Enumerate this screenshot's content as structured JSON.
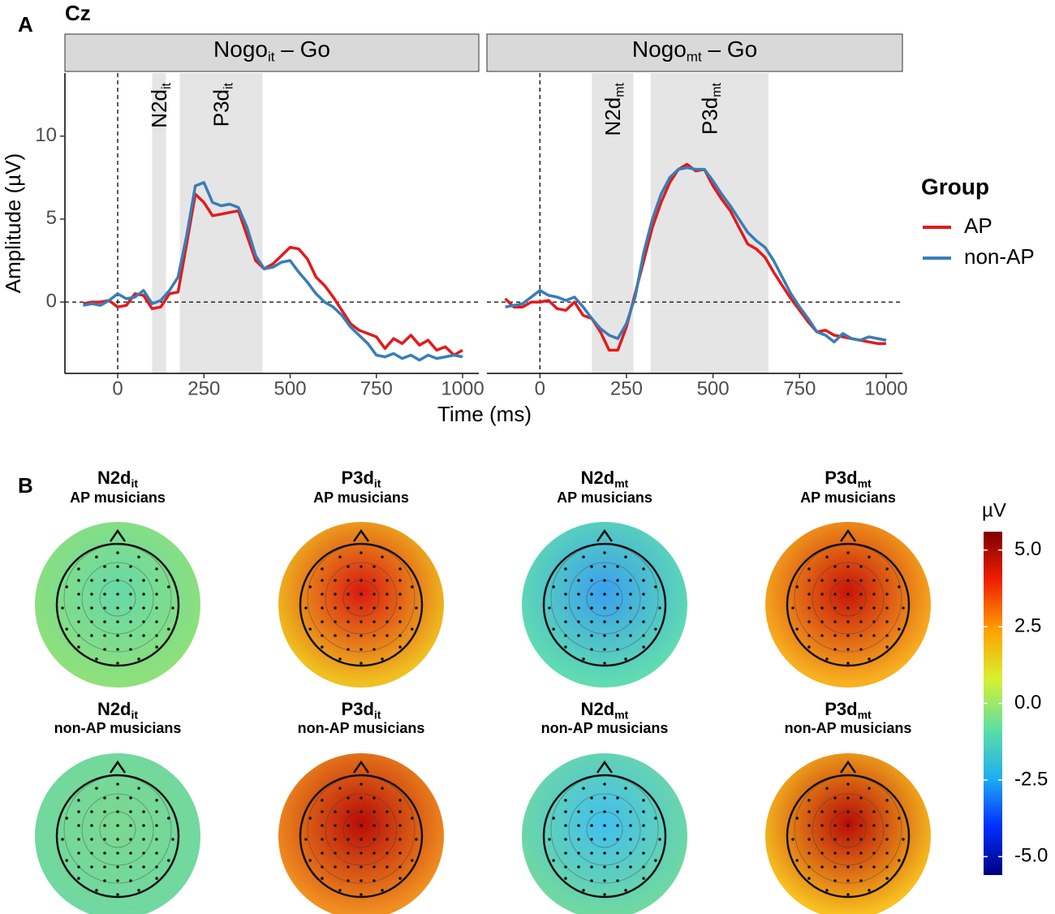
{
  "panel_labels": [
    "A",
    "B"
  ],
  "title": "Cz",
  "y_label": "Amplitude (µV)",
  "x_label": "Time (ms)",
  "legend": {
    "title": "Group"
  },
  "chart_data": [
    {
      "type": "line",
      "strip": [
        "Nogo",
        "it",
        " – Go"
      ],
      "x": [
        -100,
        -75,
        -50,
        -25,
        0,
        25,
        50,
        75,
        100,
        125,
        150,
        175,
        200,
        225,
        250,
        275,
        300,
        325,
        350,
        375,
        400,
        425,
        450,
        475,
        500,
        525,
        550,
        575,
        600,
        625,
        650,
        675,
        700,
        725,
        750,
        775,
        800,
        825,
        850,
        875,
        900,
        925,
        950,
        975,
        1000
      ],
      "series": [
        {
          "name": "AP",
          "color": "#e41a1c",
          "values": [
            -0.1,
            0,
            0,
            0.1,
            -0.3,
            -0.2,
            0.5,
            0.4,
            -0.4,
            -0.3,
            0.5,
            0.6,
            3.5,
            6.5,
            6.0,
            5.2,
            5.3,
            5.4,
            5.5,
            4.0,
            2.5,
            2.0,
            2.3,
            2.8,
            3.3,
            3.2,
            2.6,
            1.5,
            1.0,
            0.3,
            -0.5,
            -1.3,
            -1.7,
            -1.9,
            -2.1,
            -2.8,
            -2.2,
            -2.5,
            -2.0,
            -2.6,
            -2.3,
            -2.9,
            -2.7,
            -3.2,
            -2.9
          ]
        },
        {
          "name": "non-AP",
          "color": "#377eb8",
          "values": [
            -0.2,
            -0.1,
            -0.2,
            0.1,
            0.5,
            0.2,
            0.3,
            0.7,
            -0.1,
            0.1,
            0.7,
            1.5,
            4.0,
            7.0,
            7.2,
            6.0,
            5.8,
            5.9,
            5.7,
            4.5,
            2.8,
            2.0,
            2.1,
            2.4,
            2.5,
            1.8,
            1.2,
            0.5,
            0.0,
            -0.3,
            -0.8,
            -1.5,
            -2.0,
            -2.5,
            -3.2,
            -3.3,
            -3.1,
            -3.4,
            -3.2,
            -3.5,
            -3.2,
            -3.4,
            -3.3,
            -3.2,
            -3.3
          ]
        }
      ],
      "regions": [
        {
          "label": [
            "N2d",
            "it"
          ],
          "xlim": [
            100,
            140
          ]
        },
        {
          "label": [
            "P3d",
            "it"
          ],
          "xlim": [
            180,
            420
          ]
        }
      ],
      "ref_lines": {
        "x": 0,
        "y": 0
      },
      "xlim": [
        -153,
        1047
      ],
      "ylim": [
        -4.3,
        13.8
      ],
      "xticks": [
        0,
        250,
        500,
        750,
        1000
      ],
      "yticks": [
        0,
        5,
        10
      ]
    },
    {
      "type": "line",
      "strip": [
        "Nogo",
        "mt",
        " – Go"
      ],
      "x": [
        -100,
        -75,
        -50,
        -25,
        0,
        25,
        50,
        75,
        100,
        125,
        150,
        175,
        200,
        225,
        250,
        275,
        300,
        325,
        350,
        375,
        400,
        425,
        450,
        475,
        500,
        525,
        550,
        575,
        600,
        625,
        650,
        675,
        700,
        725,
        750,
        775,
        800,
        825,
        850,
        875,
        900,
        925,
        950,
        975,
        1000
      ],
      "series": [
        {
          "name": "AP",
          "color": "#e41a1c",
          "values": [
            0.2,
            -0.3,
            -0.3,
            0,
            0,
            0.1,
            -0.4,
            -0.5,
            0,
            -0.8,
            -1.0,
            -1.8,
            -2.9,
            -2.9,
            -1.5,
            0.5,
            2.5,
            4.5,
            6.0,
            7.2,
            8.0,
            8.3,
            7.9,
            8.0,
            7.0,
            6.2,
            5.5,
            4.5,
            3.5,
            3.2,
            2.7,
            1.8,
            1.0,
            0.2,
            -0.5,
            -1.2,
            -1.8,
            -1.7,
            -2.0,
            -2.1,
            -2.2,
            -2.3,
            -2.4,
            -2.5,
            -2.5
          ]
        },
        {
          "name": "non-AP",
          "color": "#377eb8",
          "values": [
            -0.3,
            -0.2,
            -0.1,
            0.3,
            0.7,
            0.4,
            0.3,
            0.1,
            0.3,
            -0.3,
            -1.0,
            -1.6,
            -2.0,
            -2.2,
            -1.3,
            0.3,
            3.0,
            5.0,
            6.5,
            7.5,
            8.0,
            8.1,
            8.0,
            8.0,
            7.3,
            6.5,
            5.8,
            5.0,
            4.2,
            3.7,
            3.3,
            2.5,
            1.5,
            0.5,
            -0.3,
            -1.0,
            -1.8,
            -2.0,
            -2.4,
            -1.9,
            -2.2,
            -2.3,
            -2.1,
            -2.2,
            -2.3
          ]
        }
      ],
      "regions": [
        {
          "label": [
            "N2d",
            "mt"
          ],
          "xlim": [
            150,
            270
          ]
        },
        {
          "label": [
            "P3d",
            "mt"
          ],
          "xlim": [
            320,
            660
          ]
        }
      ],
      "ref_lines": {
        "x": 0,
        "y": 0
      },
      "xlim": [
        -153,
        1047
      ],
      "ylim": [
        -4.3,
        13.8
      ],
      "xticks": [
        0,
        250,
        500,
        750,
        1000
      ],
      "yticks": [
        0,
        5,
        10
      ]
    }
  ],
  "topomaps": [
    {
      "title": [
        "N2d",
        "it"
      ],
      "subtitle": "AP musicians",
      "center_color": "#66d8a8",
      "edge_color": "#8ee07a"
    },
    {
      "title": [
        "P3d",
        "it"
      ],
      "subtitle": "AP musicians",
      "center_color": "#d81a10",
      "edge_color": "#f0c020"
    },
    {
      "title": [
        "N2d",
        "mt"
      ],
      "subtitle": "AP musicians",
      "center_color": "#3aa0ee",
      "edge_color": "#60dcb0"
    },
    {
      "title": [
        "P3d",
        "mt"
      ],
      "subtitle": "AP musicians",
      "center_color": "#c81408",
      "edge_color": "#f8b020"
    },
    {
      "title": [
        "N2d",
        "it"
      ],
      "subtitle": "non-AP musicians",
      "center_color": "#7ad890",
      "edge_color": "#70d8a0"
    },
    {
      "title": [
        "P3d",
        "it"
      ],
      "subtitle": "non-AP musicians",
      "center_color": "#b80c06",
      "edge_color": "#f09020"
    },
    {
      "title": [
        "N2d",
        "mt"
      ],
      "subtitle": "non-AP musicians",
      "center_color": "#40c0ee",
      "edge_color": "#70d8a0"
    },
    {
      "title": [
        "P3d",
        "mt"
      ],
      "subtitle": "non-AP musicians",
      "center_color": "#b80c06",
      "edge_color": "#f8c020"
    }
  ],
  "colorbar": {
    "title": "µV",
    "lim": [
      -5.6,
      5.6
    ],
    "colors": [
      "#000080",
      "#0030ff",
      "#20b0f0",
      "#60e0a0",
      "#d8f030",
      "#ffa000",
      "#f02000",
      "#800000"
    ],
    "ticks": [
      {
        "value": 5,
        "label": "5.0"
      },
      {
        "value": 2.5,
        "label": "2.5"
      },
      {
        "value": 0,
        "label": "0.0"
      },
      {
        "value": -2.5,
        "label": "-2.5"
      },
      {
        "value": -5,
        "label": "-5.0"
      }
    ]
  }
}
